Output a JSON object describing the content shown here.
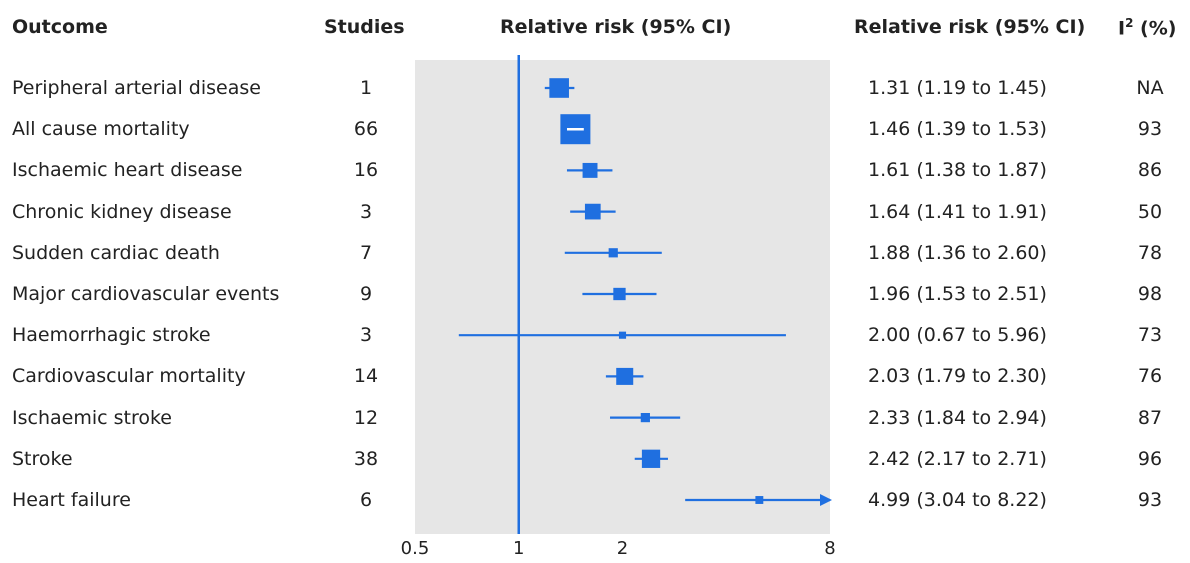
{
  "headers": {
    "outcome": "Outcome",
    "studies": "Studies",
    "plot": "Relative risk (95% CI)",
    "ci": "Relative risk (95% CI)",
    "i2_base": "I",
    "i2_sup": "2",
    "i2_rest": " (%)"
  },
  "colors": {
    "marker": "#1f6fe0",
    "ref_line": "#1f6fe0",
    "panel": "#e6e6e6"
  },
  "chart_data": {
    "type": "scatter",
    "subtype": "forest-plot",
    "x_scale": "log",
    "xlim": [
      0.5,
      8
    ],
    "ref_value": 1,
    "xticks": [
      {
        "value": 0.5,
        "label": "0.5"
      },
      {
        "value": 1,
        "label": "1"
      },
      {
        "value": 2,
        "label": "2"
      },
      {
        "value": 8,
        "label": "8"
      }
    ],
    "rows": [
      {
        "outcome": "Peripheral arterial disease",
        "studies": "1",
        "rr": 1.31,
        "lo": 1.19,
        "hi": 1.45,
        "ci_text": "1.31 (1.19 to 1.45)",
        "i2": "NA",
        "weight": 0.6
      },
      {
        "outcome": "All cause mortality",
        "studies": "66",
        "rr": 1.46,
        "lo": 1.39,
        "hi": 1.53,
        "ci_text": "1.46 (1.39 to 1.53)",
        "i2": "93",
        "weight": 1.0
      },
      {
        "outcome": "Ischaemic heart disease",
        "studies": "16",
        "rr": 1.61,
        "lo": 1.38,
        "hi": 1.87,
        "ci_text": "1.61 (1.38 to 1.87)",
        "i2": "86",
        "weight": 0.42
      },
      {
        "outcome": "Chronic kidney disease",
        "studies": "3",
        "rr": 1.64,
        "lo": 1.41,
        "hi": 1.91,
        "ci_text": "1.64 (1.41 to 1.91)",
        "i2": "50",
        "weight": 0.45
      },
      {
        "outcome": "Sudden cardiac death",
        "studies": "7",
        "rr": 1.88,
        "lo": 1.36,
        "hi": 2.6,
        "ci_text": "1.88 (1.36 to 2.60)",
        "i2": "78",
        "weight": 0.2
      },
      {
        "outcome": "Major cardiovascular events",
        "studies": "9",
        "rr": 1.96,
        "lo": 1.53,
        "hi": 2.51,
        "ci_text": "1.96 (1.53 to 2.51)",
        "i2": "98",
        "weight": 0.32
      },
      {
        "outcome": "Haemorrhagic stroke",
        "studies": "3",
        "rr": 2.0,
        "lo": 0.67,
        "hi": 5.96,
        "ci_text": "2.00 (0.67 to 5.96)",
        "i2": "73",
        "weight": 0.12
      },
      {
        "outcome": "Cardiovascular mortality",
        "studies": "14",
        "rr": 2.03,
        "lo": 1.79,
        "hi": 2.3,
        "ci_text": "2.03 (1.79 to 2.30)",
        "i2": "76",
        "weight": 0.5
      },
      {
        "outcome": "Ischaemic stroke",
        "studies": "12",
        "rr": 2.33,
        "lo": 1.84,
        "hi": 2.94,
        "ci_text": "2.33 (1.84 to 2.94)",
        "i2": "87",
        "weight": 0.2
      },
      {
        "outcome": "Stroke",
        "studies": "38",
        "rr": 2.42,
        "lo": 2.17,
        "hi": 2.71,
        "ci_text": "2.42 (2.17 to 2.71)",
        "i2": "96",
        "weight": 0.55
      },
      {
        "outcome": "Heart failure",
        "studies": "6",
        "rr": 4.99,
        "lo": 3.04,
        "hi": 8.22,
        "ci_text": "4.99 (3.04 to 8.22)",
        "i2": "93",
        "weight": 0.15,
        "arrow": true
      }
    ]
  }
}
